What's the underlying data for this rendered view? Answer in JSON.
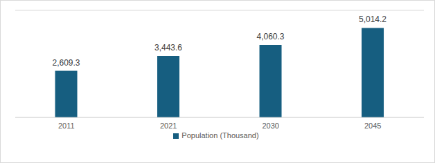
{
  "chart_data": {
    "type": "bar",
    "categories": [
      "2011",
      "2021",
      "2030",
      "2045"
    ],
    "series": [
      {
        "name": "Population (Thousand)",
        "color": "#165e80",
        "values": [
          2609.3,
          3443.6,
          4060.3,
          5014.2
        ],
        "value_labels": [
          "2,609.3",
          "3,443.6",
          "4,060.3",
          "5,014.2"
        ]
      }
    ],
    "ylim": [
      0,
      6000
    ],
    "yticks": [
      0,
      1000,
      2000,
      3000,
      4000,
      5000,
      6000
    ],
    "grid": true,
    "legend": "bottom",
    "data_labels": true,
    "tick_labels": "x"
  }
}
